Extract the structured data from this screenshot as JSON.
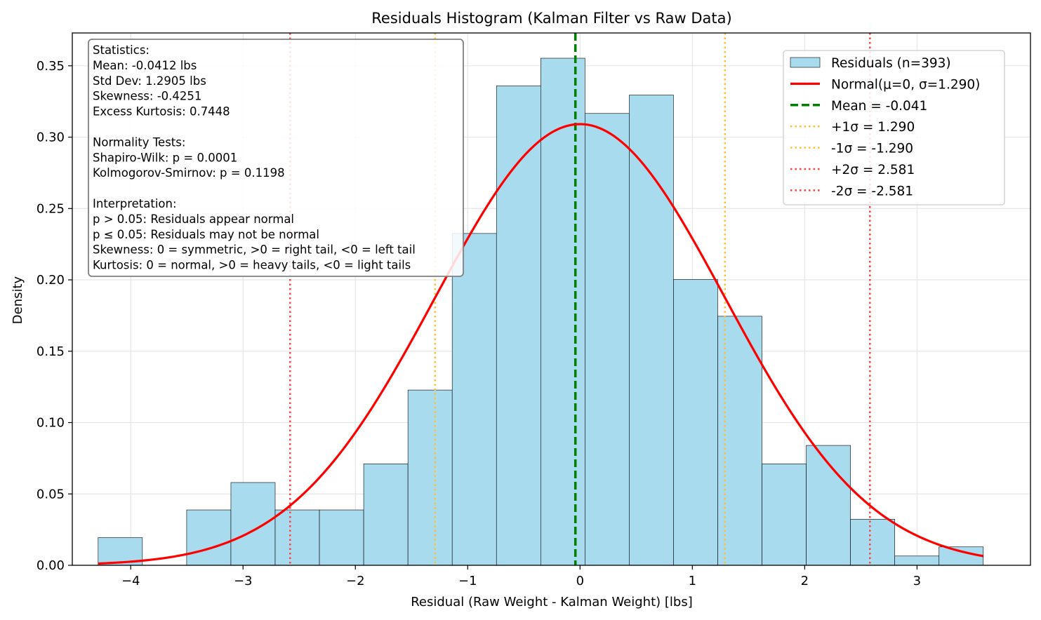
{
  "chart_data": {
    "type": "bar",
    "title": "Residuals Histogram (Kalman Filter vs Raw Data)",
    "xlabel": "Residual (Raw Weight - Kalman Weight) [lbs]",
    "ylabel": "Density",
    "xlim": [
      -4.52,
      4.01
    ],
    "ylim": [
      0.0,
      0.373
    ],
    "grid": true,
    "x_ticks": [
      {
        "value": -4,
        "label": "−4"
      },
      {
        "value": -3,
        "label": "−3"
      },
      {
        "value": -2,
        "label": "−2"
      },
      {
        "value": -1,
        "label": "−1"
      },
      {
        "value": 0,
        "label": "0"
      },
      {
        "value": 1,
        "label": "1"
      },
      {
        "value": 2,
        "label": "2"
      },
      {
        "value": 3,
        "label": "3"
      }
    ],
    "y_ticks": [
      {
        "value": 0.0,
        "label": "0.00"
      },
      {
        "value": 0.05,
        "label": "0.05"
      },
      {
        "value": 0.1,
        "label": "0.10"
      },
      {
        "value": 0.15,
        "label": "0.15"
      },
      {
        "value": 0.2,
        "label": "0.20"
      },
      {
        "value": 0.25,
        "label": "0.25"
      },
      {
        "value": 0.3,
        "label": "0.30"
      },
      {
        "value": 0.35,
        "label": "0.35"
      }
    ],
    "bin_edges": [
      -4.29,
      -3.896,
      -3.502,
      -3.108,
      -2.714,
      -2.32,
      -1.926,
      -1.532,
      -1.138,
      -0.744,
      -0.35,
      0.044,
      0.438,
      0.832,
      1.226,
      1.62,
      2.014,
      2.408,
      2.802,
      3.196,
      3.59
    ],
    "series": [
      {
        "name": "Residuals (n=393)",
        "kind": "histogram",
        "color": "#a9dbee",
        "edge_color": "#000000",
        "values": [
          0.0194,
          0.0,
          0.0388,
          0.058,
          0.0388,
          0.0388,
          0.0711,
          0.1228,
          0.2325,
          0.3359,
          0.3553,
          0.3166,
          0.3295,
          0.2003,
          0.1745,
          0.0711,
          0.084,
          0.0323,
          0.0065,
          0.0129
        ]
      },
      {
        "name": "Normal(μ=0, σ=1.290)",
        "kind": "curve",
        "color": "#ff0000",
        "mu": 0,
        "sigma": 1.2905,
        "x_range": [
          -4.29,
          3.59
        ]
      }
    ],
    "reference_lines": [
      {
        "name": "Mean = -0.041",
        "x": -0.0412,
        "color": "#008000",
        "style": "dashed"
      },
      {
        "name": "+1σ = 1.290",
        "x": 1.2905,
        "color": "#ffbf30",
        "style": "dotted"
      },
      {
        "name": "-1σ = -1.290",
        "x": -1.2905,
        "color": "#ffbf30",
        "style": "dotted"
      },
      {
        "name": "+2σ = 2.581",
        "x": 2.581,
        "color": "#ff4040",
        "style": "dotted"
      },
      {
        "name": "-2σ = -2.581",
        "x": -2.581,
        "color": "#ff4040",
        "style": "dotted"
      }
    ],
    "legend_position": "upper right",
    "stats_box_lines": [
      "Statistics:",
      "Mean: -0.0412 lbs",
      "Std Dev: 1.2905 lbs",
      "Skewness: -0.4251",
      "Excess Kurtosis: 0.7448",
      "",
      "Normality Tests:",
      "Shapiro-Wilk: p = 0.0001",
      "Kolmogorov-Smirnov: p = 0.1198",
      "",
      "Interpretation:",
      "p > 0.05: Residuals appear normal",
      "p ≤ 0.05: Residuals may not be normal",
      "Skewness: 0 = symmetric, >0 = right tail, <0 = left tail",
      "Kurtosis: 0 = normal, >0 = heavy tails, <0 = light tails"
    ]
  }
}
